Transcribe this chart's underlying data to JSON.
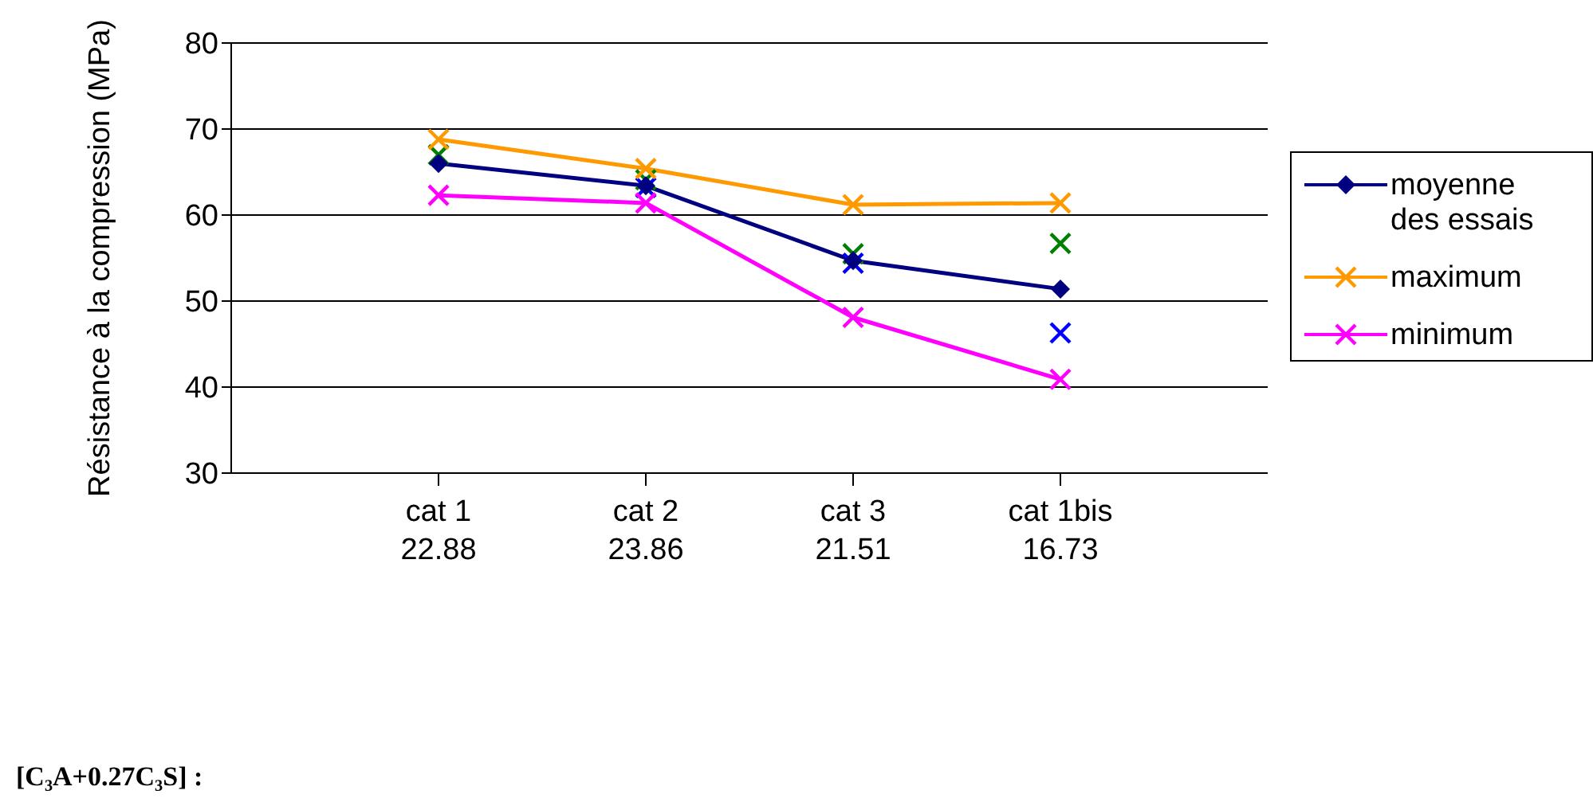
{
  "chart_data": {
    "type": "line",
    "ylabel": "Résistance à la compression (MPa)",
    "categories": [
      "cat 1",
      "cat 2",
      "cat 3",
      "cat 1bis"
    ],
    "series": [
      {
        "name": "moyenne des essais",
        "color": "#000080",
        "marker": "diamond",
        "values": [
          66.0,
          63.4,
          54.7,
          51.4
        ]
      },
      {
        "name": "maximum",
        "color": "#ff9900",
        "marker": "cross",
        "values": [
          68.8,
          65.4,
          61.2,
          61.4
        ]
      },
      {
        "name": "minimum",
        "color": "#ff00ff",
        "marker": "cross",
        "values": [
          62.3,
          61.4,
          48.1,
          40.9
        ]
      },
      {
        "type": "scatter",
        "color": "#008000",
        "marker": "cross",
        "values": [
          67.0,
          64.1,
          55.5,
          56.7
        ]
      },
      {
        "type": "scatter",
        "color": "#0000ff",
        "marker": "cross",
        "values": [
          null,
          63.2,
          54.4,
          46.3
        ]
      }
    ],
    "ylim": [
      30,
      80
    ],
    "yticks": [
      30,
      40,
      50,
      60,
      70,
      80
    ],
    "grid": "y",
    "legend": "right",
    "annotations": [
      "[C₃A+0.27C₃S] :",
      "22.88",
      "23.86",
      "21.51",
      "16.73"
    ]
  }
}
